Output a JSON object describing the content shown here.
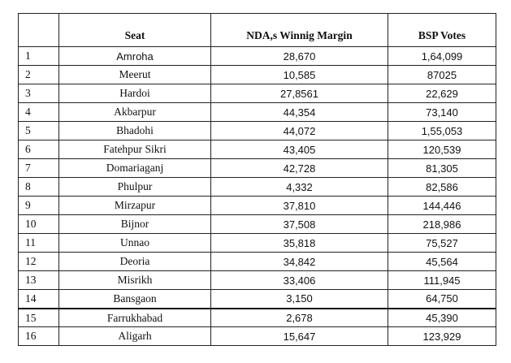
{
  "table": {
    "headers": [
      "",
      "Seat",
      "NDA,s Winnig Margin",
      "BSP Votes"
    ],
    "rows": [
      [
        "1",
        "Amroha",
        "28,670",
        "1,64,099"
      ],
      [
        "2",
        "Meerut",
        "10,585",
        "87025"
      ],
      [
        "3",
        "Hardoi",
        "27,8561",
        "22,629"
      ],
      [
        "4",
        "Akbarpur",
        "44,354",
        "73,140"
      ],
      [
        "5",
        "Bhadohi",
        "44,072",
        "1,55,053"
      ],
      [
        "6",
        "Fatehpur Sikri",
        "43,405",
        "120,539"
      ],
      [
        "7",
        "Domariaganj",
        "42,728",
        "81,305"
      ],
      [
        "8",
        "Phulpur",
        "4,332",
        "82,586"
      ],
      [
        "9",
        "Mirzapur",
        "37,810",
        "144,446"
      ],
      [
        "10",
        "Bijnor",
        "37,508",
        "218,986"
      ],
      [
        "11",
        "Unnao",
        "35,818",
        "75,527"
      ],
      [
        "12",
        "Deoria",
        "34,842",
        "45,564"
      ],
      [
        "13",
        "Misrikh",
        "33,406",
        "111,945"
      ],
      [
        "14",
        "Bansgaon",
        "3,150",
        "64,750"
      ],
      [
        "15",
        "Farrukhabad",
        "2,678",
        "45,390"
      ],
      [
        "16",
        "Aligarh",
        "15,647",
        "123,929"
      ]
    ]
  }
}
